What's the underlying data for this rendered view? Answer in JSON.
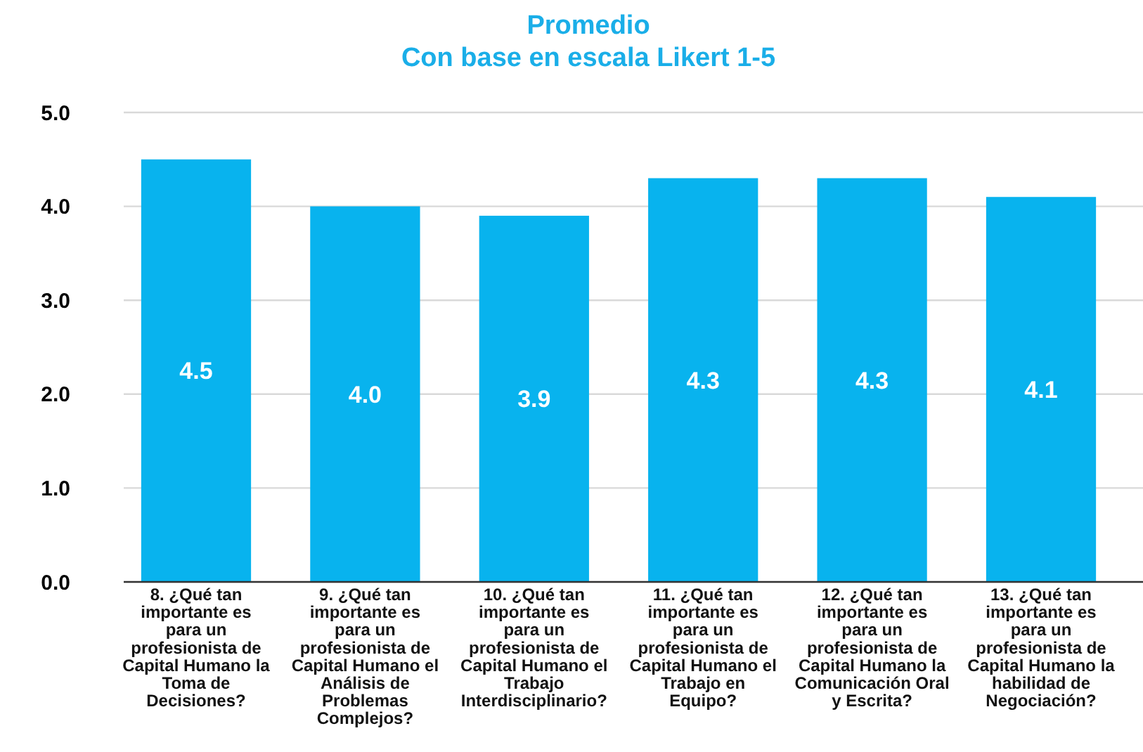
{
  "chart_data": {
    "type": "bar",
    "title": "Promedio",
    "subtitle": "Con base en escala Likert 1-5",
    "categories": [
      "8. ¿Qué tan importante es para un profesionista de Capital Humano la Toma de Decisiones?",
      "9. ¿Qué tan importante es para un profesionista de Capital Humano el Análisis de Problemas Complejos?",
      "10. ¿Qué tan importante es para un profesionista de Capital Humano el Trabajo Interdisciplinario?",
      "11. ¿Qué tan importante es para un profesionista de Capital Humano el Trabajo en Equipo?",
      "12. ¿Qué tan importante es para un profesionista de Capital Humano la Comunicación Oral y Escrita?",
      "13. ¿Qué tan importante es para un profesionista de Capital Humano la habilidad de Negociación?"
    ],
    "values": [
      4.5,
      4.0,
      3.9,
      4.3,
      4.3,
      4.1
    ],
    "color": "#08b3ee",
    "value_labels": [
      "4.5",
      "4.0",
      "3.9",
      "4.3",
      "4.3",
      "4.1"
    ],
    "ylim": [
      0,
      5
    ],
    "yticks": [
      {
        "value": 0,
        "label": "0.0"
      },
      {
        "value": 1,
        "label": "1.0"
      },
      {
        "value": 2,
        "label": "2.0"
      },
      {
        "value": 3,
        "label": "3.0"
      },
      {
        "value": 4,
        "label": "4.0"
      },
      {
        "value": 5,
        "label": "5.0"
      }
    ],
    "grid": true
  }
}
